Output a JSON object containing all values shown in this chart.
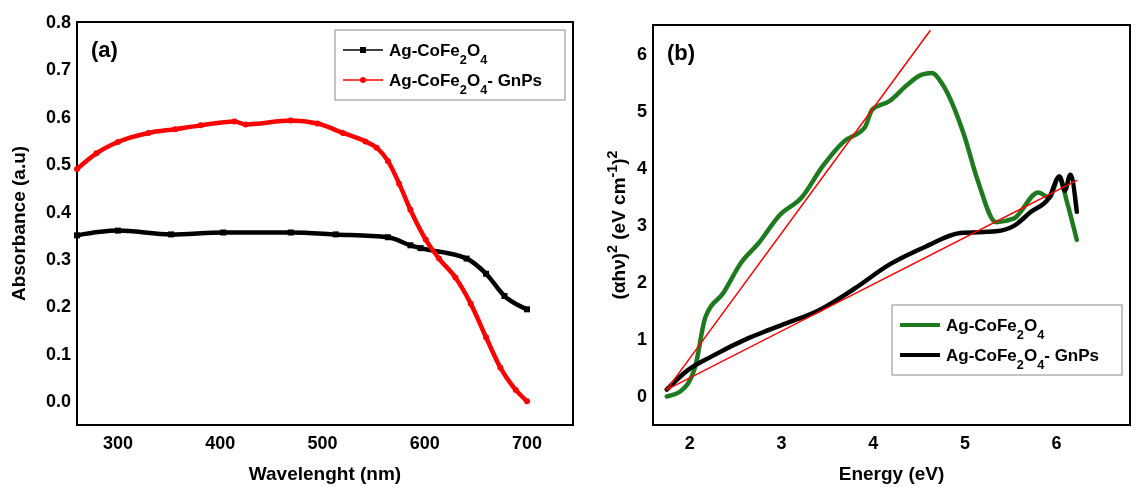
{
  "chart_data": [
    {
      "type": "line",
      "xlabel": "Wavelenght (nm)",
      "ylabel": "Absorbance (a.u)",
      "annotations": [
        "(a)"
      ],
      "xlim": [
        260,
        745
      ],
      "ylim": [
        -0.05,
        0.8
      ],
      "xticks": [
        300,
        400,
        500,
        600,
        700
      ],
      "yticks": [
        {
          "value": 0,
          "label": "0.0"
        },
        0.1,
        0.2,
        0.3,
        0.4,
        0.5,
        0.6,
        0.7,
        0.8
      ],
      "grid": false,
      "legend": "top right",
      "line_style": "solid",
      "series": [
        {
          "name": "Ag-CoFe$_{2}$O$_{4}$",
          "color": "#000000",
          "marker": "square",
          "x": [
            260,
            300,
            352,
            403,
            469,
            513,
            564,
            586,
            596,
            641,
            660,
            678,
            700
          ],
          "values": [
            0.35,
            0.36,
            0.352,
            0.356,
            0.356,
            0.352,
            0.346,
            0.329,
            0.323,
            0.301,
            0.269,
            0.222,
            0.194
          ]
        },
        {
          "name": "Ag-CoFe$_{2}$O$_{4}$- GnPs",
          "color": "#ff0000",
          "marker": "circle",
          "x": [
            260,
            279,
            300,
            330,
            356,
            381,
            414,
            425,
            469,
            495,
            520,
            542,
            553,
            564,
            575,
            586,
            601,
            614,
            630,
            645,
            660,
            674,
            689,
            700
          ],
          "values": [
            0.49,
            0.523,
            0.547,
            0.566,
            0.574,
            0.582,
            0.59,
            0.584,
            0.592,
            0.586,
            0.566,
            0.548,
            0.535,
            0.507,
            0.459,
            0.404,
            0.341,
            0.301,
            0.261,
            0.206,
            0.135,
            0.071,
            0.024,
            0.0
          ]
        }
      ]
    },
    {
      "type": "line",
      "xlabel": "Energy (eV)",
      "ylabel": "(αhν)$^{2}$ (eV cm$^{-1}$)$^{2}$",
      "annotations": [
        "(b)"
      ],
      "xlim": [
        1.6,
        6.8
      ],
      "ylim": [
        -0.5,
        6.5
      ],
      "xticks": [
        2,
        3,
        4,
        5,
        6
      ],
      "yticks": [
        0,
        1,
        2,
        3,
        4,
        5,
        6
      ],
      "grid": false,
      "legend": "bottom right",
      "line_style": "solid",
      "series": [
        {
          "name": "Ag-CoFe$_{2}$O$_{4}$",
          "color": "#1e7a1e",
          "x": [
            1.75,
            1.9,
            2.06,
            2.17,
            2.37,
            2.56,
            2.75,
            2.98,
            3.22,
            3.45,
            3.68,
            3.91,
            3.99,
            4.18,
            4.37,
            4.53,
            4.64,
            4.76,
            4.99,
            5.14,
            5.34,
            5.53,
            5.8,
            5.92,
            6.03,
            6.11,
            6.22
          ],
          "values": [
            0,
            0.09,
            0.52,
            1.38,
            1.82,
            2.34,
            2.68,
            3.17,
            3.48,
            4.03,
            4.46,
            4.71,
            5.02,
            5.17,
            5.45,
            5.63,
            5.66,
            5.45,
            4.58,
            3.78,
            3.05,
            3.11,
            3.57,
            3.48,
            3.85,
            3.42,
            2.74
          ]
        },
        {
          "name": "Ag-CoFe$_{2}$O$_{4}$- GnPs",
          "color": "#000000",
          "x": [
            1.75,
            1.98,
            2.25,
            2.64,
            3.02,
            3.41,
            3.79,
            4.18,
            4.57,
            4.95,
            5.34,
            5.53,
            5.72,
            5.92,
            6.03,
            6.09,
            6.15,
            6.22
          ],
          "values": [
            0.12,
            0.46,
            0.71,
            1.02,
            1.26,
            1.51,
            1.88,
            2.31,
            2.62,
            2.86,
            2.89,
            2.98,
            3.23,
            3.48,
            3.85,
            3.6,
            3.88,
            3.23
          ]
        },
        {
          "type": "line",
          "color": "#ff0000",
          "x": [
            1.75,
            4.62
          ],
          "values": [
            0.12,
            6.4
          ]
        },
        {
          "type": "line",
          "color": "#ff0000",
          "x": [
            1.75,
            6.22
          ],
          "values": [
            0.12,
            3.78
          ]
        }
      ]
    }
  ]
}
